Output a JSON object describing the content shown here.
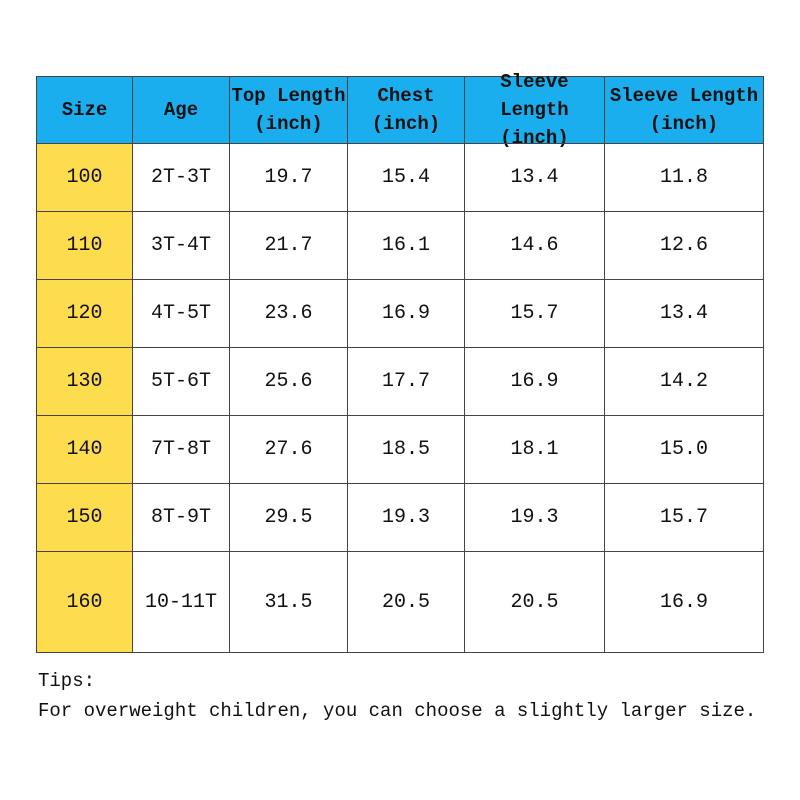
{
  "table": {
    "header": [
      [
        "Size"
      ],
      [
        "Age"
      ],
      [
        "Top Length",
        "(inch)"
      ],
      [
        "Chest",
        "(inch)"
      ],
      [
        "Sleeve Length",
        "(inch)"
      ],
      [
        "Sleeve Length",
        "(inch)"
      ]
    ],
    "rows": [
      [
        "100",
        "2T-3T",
        "19.7",
        "15.4",
        "13.4",
        "11.8"
      ],
      [
        "110",
        "3T-4T",
        "21.7",
        "16.1",
        "14.6",
        "12.6"
      ],
      [
        "120",
        "4T-5T",
        "23.6",
        "16.9",
        "15.7",
        "13.4"
      ],
      [
        "130",
        "5T-6T",
        "25.6",
        "17.7",
        "16.9",
        "14.2"
      ],
      [
        "140",
        "7T-8T",
        "27.6",
        "18.5",
        "18.1",
        "15.0"
      ],
      [
        "150",
        "8T-9T",
        "29.5",
        "19.3",
        "19.3",
        "15.7"
      ],
      [
        "160",
        "10-11T",
        "31.5",
        "20.5",
        "20.5",
        "16.9"
      ]
    ]
  },
  "tips": {
    "title": "Tips:",
    "text": "For overweight children, you can choose a slightly larger size."
  }
}
